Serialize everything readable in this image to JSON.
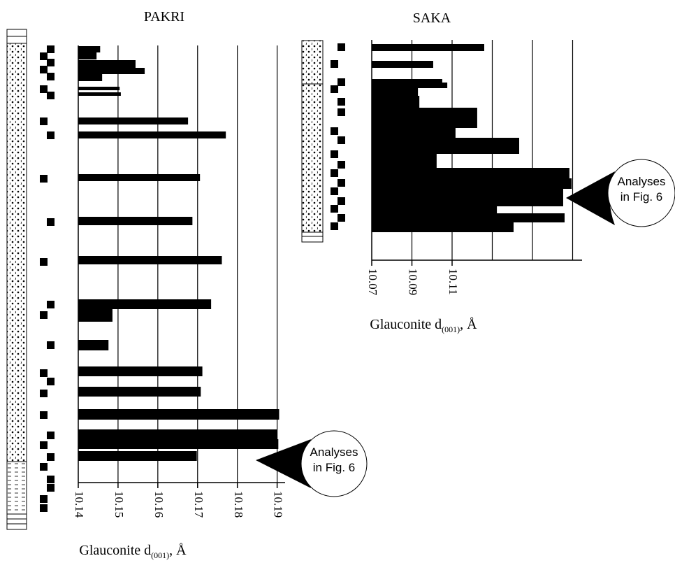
{
  "chart_data": [
    {
      "type": "bar",
      "orientation": "horizontal",
      "title": "PAKRI",
      "xlabel": [
        "Glauconite d",
        "(001)",
        ", Å"
      ],
      "values": [
        10.1455,
        10.1446,
        10.1544,
        10.1567,
        10.146,
        10.1504,
        10.1507,
        10.1676,
        10.1771,
        10.1706,
        10.1687,
        10.1761,
        10.1734,
        10.1486,
        10.1476,
        10.1712,
        10.1708,
        10.1905,
        10.19,
        10.1903,
        10.1698
      ],
      "color": "#000000",
      "xlim": [
        10.14,
        10.192
      ],
      "xticks": [
        10.14,
        10.15,
        10.16,
        10.17,
        10.18,
        10.19
      ],
      "grid": true,
      "annotation": [
        "Analyses",
        "in Fig. 6"
      ]
    },
    {
      "type": "bar",
      "orientation": "horizontal",
      "title": "SAKA",
      "xlabel": [
        "Glauconite d",
        "(001)",
        ", Å"
      ],
      "values": [
        10.126,
        10.1006,
        10.1051,
        10.1076,
        10.093,
        10.0937,
        10.1225,
        10.1117,
        10.1434,
        10.1023,
        10.1684,
        10.1695,
        10.1653,
        10.1323,
        10.166,
        10.1406
      ],
      "color": "#000000",
      "xlim": [
        10.07,
        10.1747
      ],
      "xticks": [
        10.07,
        10.09,
        10.11
      ],
      "grid": true,
      "annotation": [
        "Analyses",
        "in Fig. 6"
      ]
    }
  ]
}
